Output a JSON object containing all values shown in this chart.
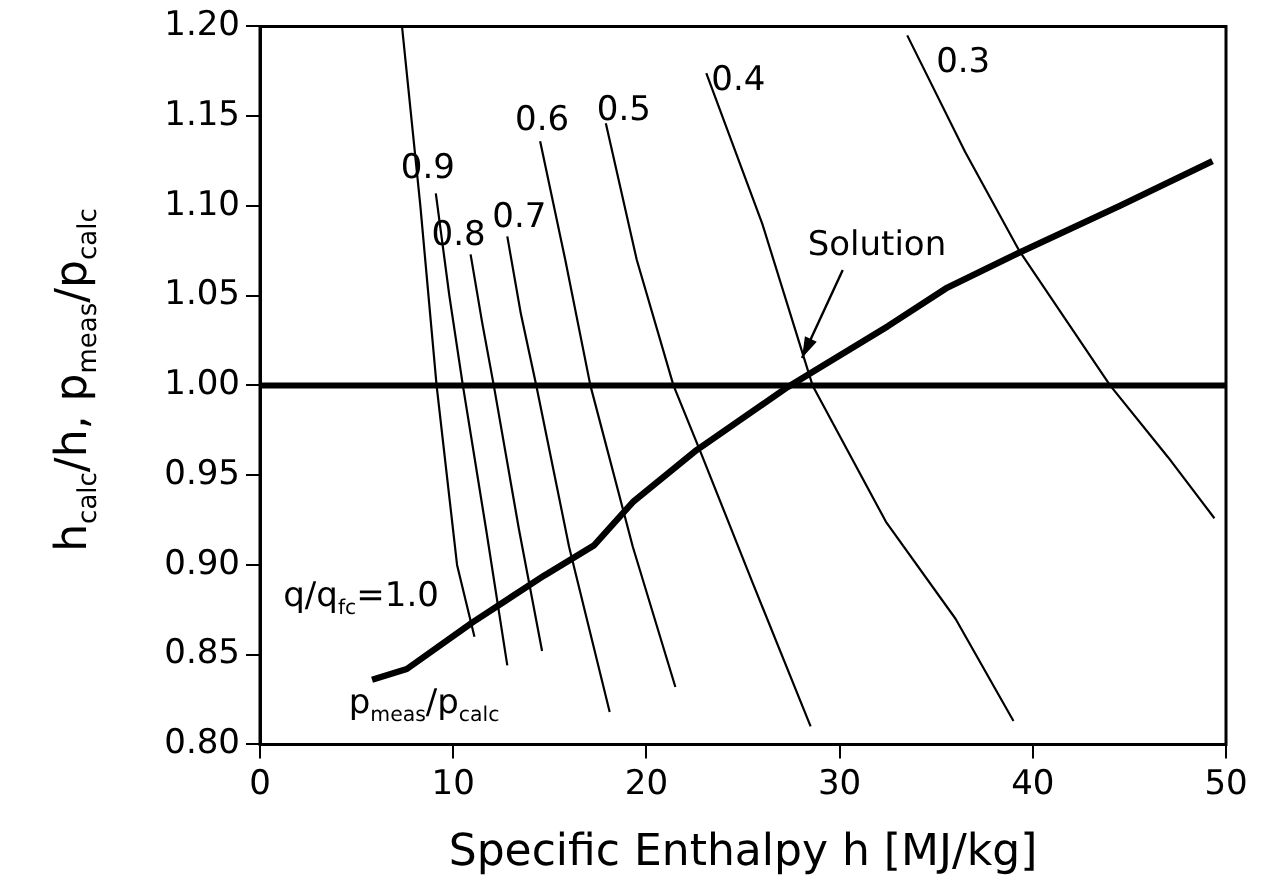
{
  "chart_data": {
    "type": "line",
    "xlabel": "Specific Enthalpy h [MJ/kg]",
    "ylabel": "h$_{calc}$/h, p$_{meas}$/p$_{calc}$",
    "xlim": [
      0,
      50
    ],
    "ylim": [
      0.8,
      1.2
    ],
    "xticks": [
      0,
      10,
      20,
      30,
      40,
      50
    ],
    "yticks": [
      {
        "value": 0.8,
        "label": "0.80"
      },
      {
        "value": 0.85,
        "label": "0.85"
      },
      {
        "value": 0.9,
        "label": "0.90"
      },
      {
        "value": 0.95,
        "label": "0.95"
      },
      {
        "value": 1.0,
        "label": "1.00"
      },
      {
        "value": 1.05,
        "label": "1.05"
      },
      {
        "value": 1.1,
        "label": "1.10"
      },
      {
        "value": 1.15,
        "label": "1.15"
      },
      {
        "value": 1.2,
        "label": "1.20"
      }
    ],
    "grid": false,
    "legend": false,
    "marker": "none",
    "line_style": "solid",
    "series": [
      {
        "color": "#000000",
        "x": [
          7.35,
          8.3,
          9.14,
          10.2,
          11.1
        ],
        "values": [
          1.2,
          1.1,
          1.0,
          0.9,
          0.86
        ]
      },
      {
        "color": "#000000",
        "x": [
          9.1,
          9.8,
          10.5,
          11.7,
          12.8
        ],
        "values": [
          1.107,
          1.05,
          1.0,
          0.92,
          0.844
        ]
      },
      {
        "color": "#000000",
        "x": [
          10.9,
          11.5,
          12.1,
          13.4,
          14.6
        ],
        "values": [
          1.073,
          1.035,
          1.0,
          0.92,
          0.852
        ]
      },
      {
        "color": "#000000",
        "x": [
          12.8,
          13.5,
          14.3,
          16.0,
          18.1
        ],
        "values": [
          1.083,
          1.04,
          1.0,
          0.91,
          0.818
        ]
      },
      {
        "color": "#000000",
        "x": [
          14.5,
          15.8,
          17.1,
          19.3,
          21.5
        ],
        "values": [
          1.136,
          1.07,
          1.0,
          0.91,
          0.832
        ]
      },
      {
        "color": "#000000",
        "x": [
          17.9,
          19.5,
          21.4,
          22.8,
          25.5,
          28.5
        ],
        "values": [
          1.146,
          1.07,
          1.0,
          0.963,
          0.89,
          0.81
        ]
      },
      {
        "color": "#000000",
        "x": [
          23.1,
          26.0,
          28.6,
          32.4,
          36.0,
          39.0
        ],
        "values": [
          1.174,
          1.09,
          1.0,
          0.924,
          0.87,
          0.813
        ]
      },
      {
        "color": "#000000",
        "x": [
          33.5,
          36.5,
          39.3,
          44.0,
          47.0,
          49.4
        ],
        "values": [
          1.195,
          1.13,
          1.075,
          1.0,
          0.96,
          0.926
        ]
      },
      {
        "color": "#000000",
        "x": [
          5.8,
          7.6,
          11.0,
          14.7,
          17.3,
          19.3,
          22.6,
          27.3,
          29.3,
          32.5,
          35.5,
          39.3,
          44.5,
          49.3
        ],
        "values": [
          0.836,
          0.842,
          0.868,
          0.894,
          0.911,
          0.935,
          0.964,
          0.999,
          1.012,
          1.033,
          1.054,
          1.074,
          1.1,
          1.125
        ]
      }
    ],
    "ref_lines": [
      {
        "axis": "y",
        "value": 1.0,
        "color": "#000000"
      }
    ],
    "annotations": [
      {
        "text": "0.9",
        "x": 9.1,
        "y": 1.107
      },
      {
        "text": "0.8",
        "x": 10.9,
        "y": 1.073
      },
      {
        "text": "0.7",
        "x": 12.8,
        "y": 1.083
      },
      {
        "text": "0.6",
        "x": 14.5,
        "y": 1.136
      },
      {
        "text": "0.5",
        "x": 17.9,
        "y": 1.146
      },
      {
        "text": "0.4",
        "x": 23.1,
        "y": 1.174
      },
      {
        "text": "0.3",
        "x": 33.5,
        "y": 1.195
      },
      {
        "text": "q/q$_{fc}$=1.0",
        "x": 10.2,
        "y": 0.9
      },
      {
        "text": "p$_{meas}$/p$_{calc}$",
        "x": 5.8,
        "y": 0.836
      },
      {
        "text": "Solution",
        "x": 28.0,
        "y": 1.013
      }
    ]
  }
}
